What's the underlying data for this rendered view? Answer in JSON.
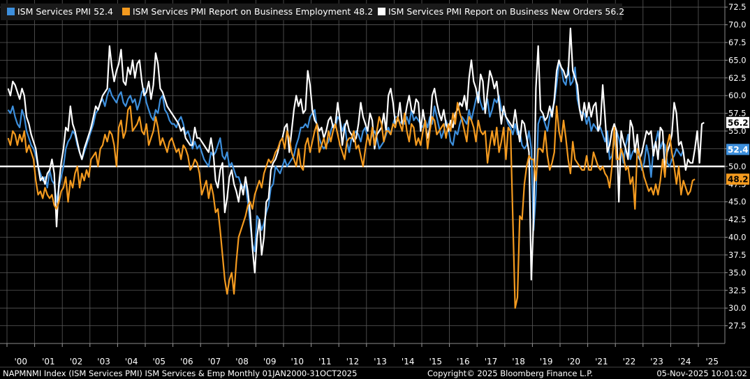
{
  "chart_data": {
    "type": "line",
    "ylim": [
      25.0,
      73.5
    ],
    "y_ticks": [
      "27.5",
      "30.0",
      "32.5",
      "35.0",
      "37.5",
      "40.0",
      "42.5",
      "45.0",
      "47.5",
      "50.0",
      "52.5",
      "55.0",
      "57.5",
      "60.0",
      "62.5",
      "65.0",
      "67.5",
      "70.0",
      "72.5"
    ],
    "x_tick_labels": [
      "'00",
      "'01",
      "'02",
      "'03",
      "'04",
      "'05",
      "'06",
      "'07",
      "'08",
      "'09",
      "'10",
      "'11",
      "'12",
      "'13",
      "'14",
      "'15",
      "'16",
      "'17",
      "'18",
      "'19",
      "'20",
      "'21",
      "'22",
      "'23",
      "'24",
      "'25"
    ],
    "x_start_year": 2000,
    "reference_line": 50.0,
    "series": [
      {
        "name": "ISM Services PMI",
        "last_value": "52.4",
        "color": "#3d8fdc",
        "values": [
          58.0,
          57.5,
          58.5,
          57.0,
          56.0,
          55.5,
          58.0,
          57.0,
          55.0,
          54.0,
          53.0,
          52.5,
          51.5,
          50.0,
          49.0,
          48.0,
          48.5,
          47.0,
          49.5,
          48.0,
          47.5,
          45.0,
          47.0,
          48.5,
          50.0,
          52.5,
          53.5,
          54.0,
          55.0,
          54.5,
          53.0,
          52.0,
          51.0,
          52.0,
          53.0,
          54.0,
          55.0,
          56.0,
          57.5,
          58.0,
          59.0,
          59.5,
          58.5,
          60.0,
          61.0,
          60.0,
          59.5,
          59.0,
          60.0,
          60.5,
          59.0,
          58.5,
          59.5,
          60.0,
          59.0,
          59.5,
          58.0,
          59.0,
          60.5,
          61.0,
          59.0,
          58.0,
          57.0,
          56.5,
          58.0,
          57.5,
          59.5,
          60.0,
          58.0,
          57.5,
          56.5,
          56.0,
          56.0,
          55.5,
          56.5,
          57.0,
          56.0,
          54.5,
          55.0,
          54.0,
          52.5,
          53.5,
          52.5,
          53.0,
          52.0,
          51.0,
          50.5,
          50.0,
          52.0,
          51.5,
          52.0,
          53.0,
          54.0,
          51.5,
          51.0,
          52.0,
          50.0,
          50.5,
          49.5,
          48.5,
          48.5,
          47.5,
          47.0,
          47.5,
          45.0,
          42.0,
          39.0,
          38.0,
          43.0,
          42.5,
          41.0,
          42.0,
          43.5,
          44.5,
          47.0,
          47.5,
          50.0,
          49.5,
          49.0,
          50.0,
          51.0,
          50.0,
          50.5,
          51.0,
          51.5,
          53.0,
          54.0,
          55.5,
          55.5,
          56.0,
          55.5,
          57.0,
          57.5,
          58.0,
          55.5,
          54.0,
          53.0,
          52.5,
          53.0,
          53.5,
          55.0,
          56.0,
          55.5,
          57.0,
          56.5,
          55.0,
          56.0,
          53.5,
          52.0,
          54.0,
          54.5,
          55.0,
          54.5,
          53.5,
          55.0,
          55.5,
          54.0,
          53.5,
          54.5,
          55.0,
          54.0,
          52.5,
          53.0,
          53.5,
          54.5,
          55.5,
          54.5,
          56.0,
          57.0,
          57.0,
          56.0,
          56.5,
          56.0,
          57.0,
          56.0,
          58.0,
          56.5,
          57.0,
          56.5,
          56.0,
          55.5,
          56.5,
          55.5,
          57.0,
          56.0,
          58.5,
          57.0,
          55.5,
          54.0,
          55.0,
          56.5,
          55.5,
          53.5,
          53.0,
          55.0,
          54.5,
          56.0,
          57.0,
          56.5,
          56.0,
          58.0,
          56.5,
          58.0,
          59.5,
          60.5,
          59.0,
          58.0,
          58.5,
          59.5,
          57.0,
          58.0,
          59.5,
          59.0,
          60.0,
          58.0,
          57.5,
          57.0,
          56.0,
          55.5,
          54.5,
          56.0,
          54.5,
          55.0,
          53.0,
          52.5,
          53.0,
          55.0,
          52.5,
          41.0,
          46.0,
          56.0,
          57.0,
          57.0,
          56.0,
          55.0,
          57.0,
          58.0,
          59.0,
          61.5,
          64.5,
          64.0,
          62.0,
          61.5,
          64.0,
          61.5,
          62.0,
          64.0,
          59.5,
          58.0,
          57.5,
          57.5,
          56.0,
          57.0,
          55.0,
          56.0,
          55.5,
          55.0,
          55.5,
          54.5,
          53.5,
          55.0,
          51.0,
          51.5,
          53.5,
          55.0,
          54.0,
          52.5,
          50.5,
          53.0,
          54.5,
          51.0,
          52.0,
          52.5,
          51.5,
          51.0,
          49.5,
          50.5,
          53.0,
          51.5,
          48.5,
          52.5,
          53.5,
          55.0,
          52.5,
          53.5,
          53.0,
          50.5,
          50.0,
          51.0,
          51.5,
          52.5,
          52.0,
          51.5,
          52.4
        ]
      },
      {
        "name": "ISM Services PMI Report on Business Employment",
        "last_value": "48.2",
        "color": "#f39a1f",
        "values": [
          54.0,
          53.0,
          55.0,
          54.5,
          53.0,
          54.5,
          53.5,
          55.0,
          52.0,
          53.0,
          52.0,
          51.0,
          48.0,
          46.0,
          46.5,
          45.5,
          47.0,
          46.0,
          45.5,
          46.0,
          44.5,
          44.0,
          45.0,
          46.5,
          47.0,
          48.5,
          45.0,
          48.0,
          47.0,
          49.0,
          50.0,
          47.0,
          49.0,
          48.0,
          49.5,
          48.5,
          51.0,
          51.5,
          52.0,
          50.0,
          52.5,
          53.0,
          54.5,
          53.5,
          55.0,
          54.5,
          53.0,
          50.0,
          55.5,
          56.5,
          54.0,
          55.0,
          58.0,
          58.5,
          55.0,
          55.5,
          56.0,
          57.0,
          55.0,
          54.5,
          56.0,
          53.0,
          54.0,
          55.0,
          57.0,
          55.5,
          53.0,
          54.0,
          53.0,
          52.0,
          53.5,
          54.0,
          53.0,
          52.0,
          52.5,
          51.0,
          53.0,
          52.5,
          51.5,
          49.5,
          50.0,
          51.0,
          50.5,
          49.0,
          46.0,
          47.0,
          48.0,
          45.5,
          47.5,
          46.0,
          43.5,
          44.0,
          41.0,
          37.5,
          34.0,
          32.0,
          34.0,
          35.0,
          32.0,
          36.5,
          40.0,
          41.0,
          42.0,
          43.0,
          44.5,
          45.0,
          44.0,
          46.0,
          47.0,
          48.0,
          47.0,
          49.0,
          50.0,
          51.0,
          50.5,
          51.0,
          52.0,
          52.5,
          53.5,
          54.0,
          52.5,
          55.0,
          54.0,
          52.0,
          51.0,
          50.0,
          52.5,
          50.0,
          49.5,
          53.0,
          54.0,
          52.0,
          53.5,
          55.0,
          56.0,
          52.0,
          53.0,
          54.0,
          52.5,
          55.0,
          53.5,
          55.0,
          56.0,
          54.5,
          53.0,
          52.0,
          51.0,
          53.5,
          54.0,
          54.0,
          55.0,
          52.5,
          53.0,
          51.5,
          50.0,
          52.5,
          54.5,
          53.0,
          55.5,
          53.0,
          55.0,
          57.0,
          56.0,
          53.5,
          55.0,
          55.0,
          54.5,
          56.0,
          55.5,
          57.0,
          56.0,
          55.0,
          57.5,
          55.0,
          53.5,
          56.0,
          55.5,
          53.0,
          54.0,
          53.0,
          55.0,
          56.5,
          52.5,
          55.0,
          57.0,
          56.5,
          54.5,
          55.0,
          55.5,
          56.0,
          54.0,
          56.0,
          55.0,
          57.5,
          56.0,
          59.0,
          57.5,
          56.5,
          55.0,
          53.5,
          57.0,
          56.5,
          55.5,
          53.5,
          56.5,
          55.0,
          54.5,
          55.0,
          50.5,
          53.0,
          55.0,
          53.0,
          55.5,
          52.0,
          53.5,
          55.5,
          51.0,
          55.5,
          55.0,
          42.5,
          30.0,
          31.5,
          43.0,
          42.5,
          47.5,
          50.0,
          51.5,
          51.0,
          51.0,
          48.0,
          52.5,
          52.5,
          52.0,
          55.0,
          51.5,
          49.5,
          50.5,
          52.0,
          58.5,
          55.0,
          53.5,
          56.5,
          54.0,
          51.0,
          49.0,
          53.5,
          51.0,
          50.5,
          50.0,
          49.5,
          49.5,
          51.5,
          49.5,
          49.5,
          52.0,
          51.0,
          50.0,
          49.5,
          50.0,
          49.0,
          48.5,
          47.0,
          50.0,
          55.5,
          51.0,
          51.0,
          52.5,
          51.5,
          49.5,
          50.0,
          47.5,
          48.5,
          44.0,
          52.5,
          51.5,
          50.0,
          48.5,
          47.5,
          46.5,
          47.0,
          46.0,
          47.5,
          46.0,
          48.0,
          51.0,
          48.5,
          53.0,
          54.5,
          52.0,
          50.0,
          47.5,
          50.0,
          46.0,
          48.0,
          47.0,
          46.0,
          46.5,
          48.0,
          48.2
        ]
      },
      {
        "name": "ISM Services PMI Report on Business New Orders",
        "last_value": "56.2",
        "color": "#ffffff",
        "values": [
          61.0,
          60.0,
          62.0,
          61.5,
          60.5,
          59.5,
          61.0,
          60.0,
          57.0,
          56.0,
          54.5,
          53.5,
          52.5,
          50.0,
          48.0,
          48.5,
          47.5,
          49.0,
          49.5,
          51.0,
          49.0,
          41.5,
          47.5,
          50.5,
          52.5,
          55.5,
          55.0,
          58.5,
          56.0,
          55.0,
          53.5,
          52.0,
          51.0,
          52.5,
          53.5,
          54.5,
          55.5,
          57.0,
          58.5,
          58.0,
          59.0,
          60.0,
          60.5,
          61.0,
          67.0,
          64.0,
          62.0,
          63.5,
          64.5,
          66.5,
          62.0,
          61.5,
          64.0,
          63.0,
          65.0,
          62.5,
          64.5,
          65.0,
          62.0,
          60.0,
          60.5,
          62.0,
          59.5,
          61.5,
          66.0,
          64.5,
          61.0,
          60.5,
          59.5,
          58.5,
          58.0,
          57.5,
          57.0,
          56.5,
          56.0,
          55.0,
          55.5,
          54.0,
          53.5,
          53.0,
          53.0,
          55.5,
          54.0,
          54.0,
          53.5,
          53.0,
          52.5,
          52.0,
          54.0,
          52.0,
          48.0,
          47.0,
          49.5,
          50.5,
          43.5,
          45.5,
          48.5,
          49.5,
          47.5,
          46.5,
          45.0,
          47.5,
          46.0,
          48.5,
          46.5,
          43.5,
          38.5,
          35.0,
          40.0,
          42.5,
          37.5,
          40.0,
          45.0,
          45.5,
          49.5,
          50.5,
          51.0,
          52.0,
          53.5,
          54.0,
          55.5,
          56.0,
          52.0,
          55.0,
          58.0,
          60.0,
          58.5,
          59.5,
          57.5,
          58.0,
          63.5,
          61.5,
          58.0,
          56.5,
          56.0,
          55.0,
          55.5,
          54.0,
          55.0,
          56.5,
          57.0,
          55.5,
          56.0,
          59.0,
          56.5,
          53.0,
          55.5,
          56.5,
          55.0,
          54.5,
          53.5,
          54.0,
          56.0,
          59.0,
          57.0,
          56.0,
          55.0,
          57.5,
          56.5,
          52.5,
          54.5,
          55.0,
          55.5,
          57.5,
          55.0,
          60.0,
          61.0,
          59.0,
          56.0,
          56.5,
          59.0,
          56.0,
          56.5,
          58.5,
          60.0,
          58.0,
          57.5,
          59.5,
          59.0,
          55.0,
          58.0,
          56.0,
          54.0,
          55.5,
          60.0,
          61.0,
          59.0,
          57.5,
          56.5,
          58.0,
          56.0,
          55.0,
          56.5,
          55.5,
          57.5,
          58.0,
          59.0,
          58.5,
          60.0,
          58.0,
          62.5,
          65.0,
          62.0,
          61.0,
          59.0,
          63.0,
          62.0,
          57.5,
          60.5,
          63.5,
          62.5,
          61.0,
          62.0,
          59.0,
          56.0,
          58.5,
          57.0,
          56.5,
          56.0,
          55.5,
          58.0,
          55.5,
          53.5,
          56.5,
          56.0,
          54.0,
          52.0,
          34.0,
          42.5,
          61.0,
          67.0,
          58.0,
          57.5,
          56.5,
          57.0,
          58.5,
          57.0,
          59.5,
          63.5,
          65.0,
          64.0,
          63.5,
          62.5,
          63.0,
          69.5,
          63.5,
          62.5,
          61.5,
          58.0,
          56.5,
          59.0,
          57.0,
          59.0,
          57.0,
          58.5,
          59.0,
          55.0,
          56.0,
          61.5,
          57.0,
          52.0,
          53.0,
          55.0,
          56.0,
          55.0,
          45.0,
          55.0,
          53.5,
          52.5,
          51.0,
          56.5,
          55.5,
          52.0,
          54.5,
          51.0,
          52.0,
          53.5,
          55.0,
          54.5,
          55.0,
          51.5,
          53.5,
          51.0,
          55.5,
          55.0,
          49.5,
          52.0,
          53.0,
          54.5,
          59.0,
          57.5,
          53.0,
          53.5,
          52.0,
          49.5,
          51.0,
          50.5,
          50.5,
          52.5,
          55.0,
          50.5,
          56.0,
          56.2
        ]
      }
    ]
  },
  "footer": {
    "left": "NAPMNMI Index (ISM Services PMI) ISM Services & Emp Monthly 01JAN2000-31OCT2025",
    "center": "Copyright© 2025 Bloomberg Finance L.P.",
    "right": "05-Nov-2025 10:01:02"
  }
}
